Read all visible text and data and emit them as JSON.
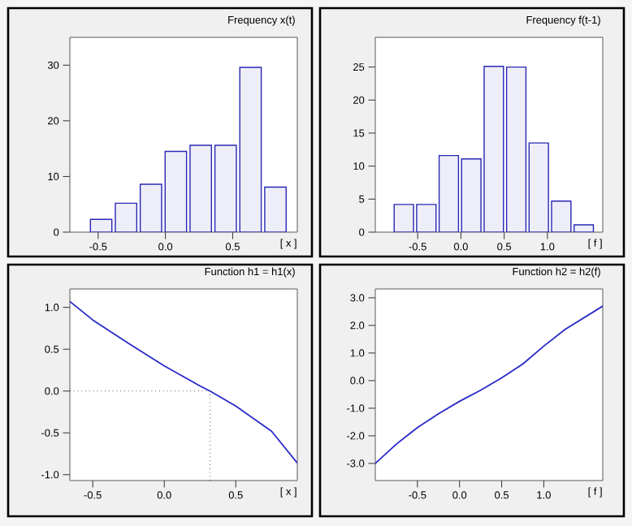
{
  "chart_data": [
    {
      "type": "histogram",
      "title": "Frequency x(t)",
      "xlabel": "[ x ]",
      "color": "#2828b4",
      "bins": [
        -0.57,
        -0.385,
        -0.2,
        -0.015,
        0.17,
        0.355,
        0.54,
        0.725,
        0.91
      ],
      "values": [
        2.3,
        5.2,
        8.6,
        14.5,
        15.6,
        15.6,
        29.6,
        8.1
      ],
      "xlim": [
        -0.71,
        0.98
      ],
      "xticks": [
        {
          "value": -0.5,
          "label": "-0.5"
        },
        {
          "value": 0,
          "label": "0.0"
        },
        {
          "value": 0.5,
          "label": "0.5"
        }
      ],
      "ylim": [
        0,
        35
      ],
      "yticks": [
        {
          "value": 0,
          "label": "0"
        },
        {
          "value": 10,
          "label": "10"
        },
        {
          "value": 20,
          "label": "20"
        },
        {
          "value": 30,
          "label": "30"
        }
      ]
    },
    {
      "type": "histogram",
      "title": "Frequency f(t-1)",
      "xlabel": "[ f ]",
      "color": "#2828b4",
      "bins": [
        -0.79,
        -0.53,
        -0.27,
        -0.01,
        0.25,
        0.51,
        0.77,
        1.03,
        1.29,
        1.55
      ],
      "values": [
        4.2,
        4.2,
        11.6,
        11.1,
        25.1,
        25,
        13.5,
        4.7,
        1.1
      ],
      "xlim": [
        -0.99,
        1.64
      ],
      "xticks": [
        {
          "value": -0.5,
          "label": "-0.5"
        },
        {
          "value": 0,
          "label": "0.0"
        },
        {
          "value": 0.5,
          "label": "0.5"
        },
        {
          "value": 1,
          "label": "1.0"
        }
      ],
      "ylim": [
        0,
        29.5
      ],
      "yticks": [
        {
          "value": 0,
          "label": "0"
        },
        {
          "value": 5,
          "label": "5"
        },
        {
          "value": 10,
          "label": "10"
        },
        {
          "value": 15,
          "label": "15"
        },
        {
          "value": 20,
          "label": "20"
        },
        {
          "value": 25,
          "label": "25"
        }
      ]
    },
    {
      "type": "line",
      "title": "Function h1 = h1(x)",
      "xlabel": "[ x ]",
      "color": "#2828c8",
      "x": [
        -0.66,
        -0.5,
        -0.25,
        0,
        0.25,
        0.32,
        0.5,
        0.75,
        0.93
      ],
      "values": [
        1.07,
        0.85,
        0.57,
        0.3,
        0.06,
        0,
        -0.18,
        -0.48,
        -0.86
      ],
      "ref_lines": [
        {
          "axis": "y",
          "value": 0,
          "line_style": "dotted"
        },
        {
          "axis": "x",
          "value": 0.32,
          "line_style": "dotted"
        }
      ],
      "xlim": [
        -0.66,
        0.93
      ],
      "xticks": [
        {
          "value": -0.5,
          "label": "-0.5"
        },
        {
          "value": 0,
          "label": "0.0"
        },
        {
          "value": 0.5,
          "label": "0.5"
        }
      ],
      "ylim": [
        -1.07,
        1.22
      ],
      "yticks": [
        {
          "value": -1,
          "label": "-1.0"
        },
        {
          "value": -0.5,
          "label": "-0.5"
        },
        {
          "value": 0,
          "label": "0.0"
        },
        {
          "value": 0.5,
          "label": "0.5"
        },
        {
          "value": 1,
          "label": "1.0"
        }
      ]
    },
    {
      "type": "line",
      "title": "Function h2 = h2(f)",
      "xlabel": "[ f ]",
      "color": "#2828c8",
      "x": [
        -1.0,
        -0.75,
        -0.5,
        -0.25,
        0,
        0.25,
        0.5,
        0.75,
        1.0,
        1.25,
        1.7
      ],
      "values": [
        -3.0,
        -2.3,
        -1.7,
        -1.2,
        -0.75,
        -0.35,
        0.1,
        0.6,
        1.25,
        1.85,
        2.7
      ],
      "xlim": [
        -1.0,
        1.7
      ],
      "xticks": [
        {
          "value": -0.5,
          "label": "-0.5"
        },
        {
          "value": 0,
          "label": "0.0"
        },
        {
          "value": 0.5,
          "label": "0.5"
        },
        {
          "value": 1,
          "label": "1.0"
        }
      ],
      "ylim": [
        -3.62,
        3.32
      ],
      "yticks": [
        {
          "value": -3,
          "label": "-3.0"
        },
        {
          "value": -2,
          "label": "-2.0"
        },
        {
          "value": -1,
          "label": "-1.0"
        },
        {
          "value": 0,
          "label": "0.0"
        },
        {
          "value": 1,
          "label": "1.0"
        },
        {
          "value": 2,
          "label": "2.0"
        },
        {
          "value": 3,
          "label": "3.0"
        }
      ]
    }
  ]
}
